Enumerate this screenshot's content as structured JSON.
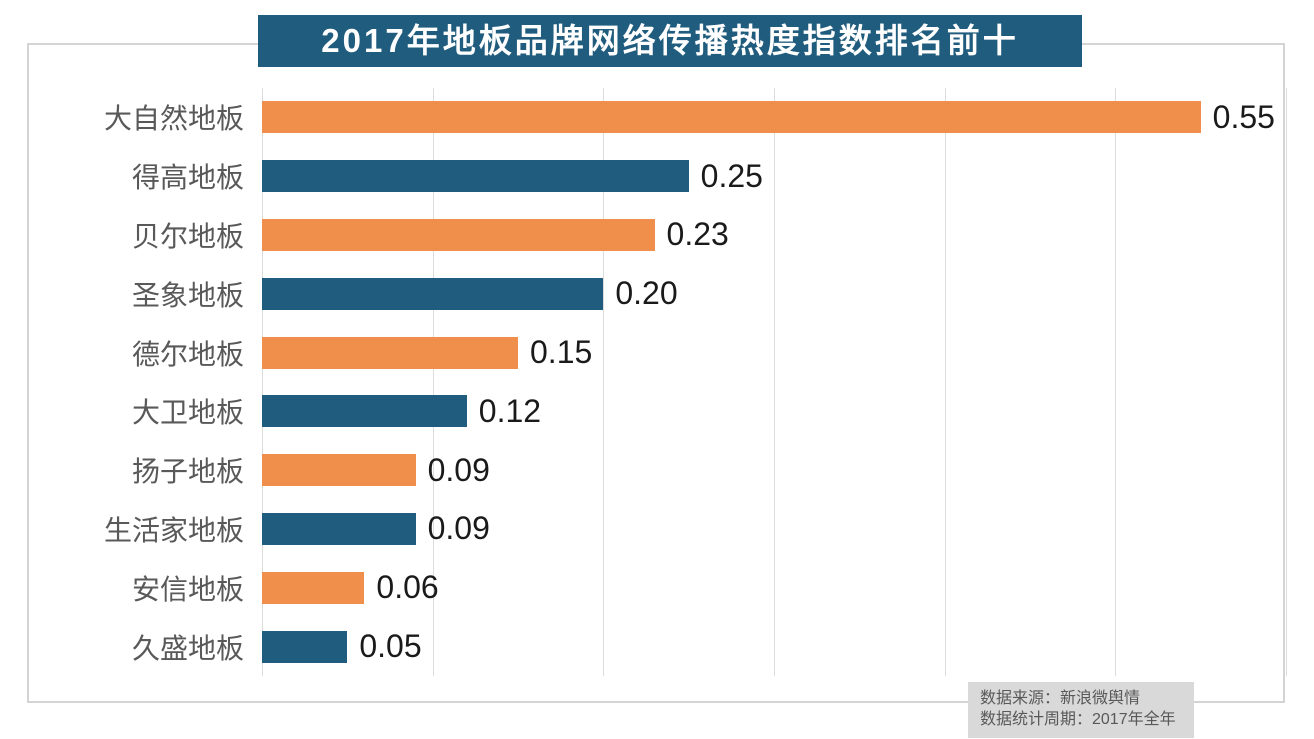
{
  "title": "2017年地板品牌网络传播热度指数排名前十",
  "colors": {
    "title_bg": "#1f5c7d",
    "title_text": "#ffffff",
    "bar_orange": "#ef8f4b",
    "bar_blue": "#1f5c7d",
    "label_text": "#595959",
    "value_text": "#1a1a1a",
    "gridline": "#dcdcdc",
    "frame_border": "#d4d4d4",
    "source_bg": "#d9d9d9",
    "source_text": "#595959"
  },
  "chart_data": {
    "type": "bar",
    "orientation": "horizontal",
    "title": "2017年地板品牌网络传播热度指数排名前十",
    "categories": [
      "大自然地板",
      "得高地板",
      "贝尔地板",
      "圣象地板",
      "德尔地板",
      "大卫地板",
      "扬子地板",
      "生活家地板",
      "安信地板",
      "久盛地板"
    ],
    "values": [
      0.55,
      0.25,
      0.23,
      0.2,
      0.15,
      0.12,
      0.09,
      0.09,
      0.06,
      0.05
    ],
    "value_labels": [
      "0.55",
      "0.25",
      "0.23",
      "0.20",
      "0.15",
      "0.12",
      "0.09",
      "0.09",
      "0.06",
      "0.05"
    ],
    "bar_color_pattern": [
      "#ef8f4b",
      "#1f5c7d"
    ],
    "xlabel": "",
    "ylabel": "",
    "xlim": [
      0,
      0.6
    ],
    "gridline_step": 0.1,
    "grid": true,
    "legend": false,
    "data_labels": true
  },
  "footer": {
    "line1": "数据来源：新浪微舆情",
    "line2": "数据统计周期：2017年全年"
  }
}
